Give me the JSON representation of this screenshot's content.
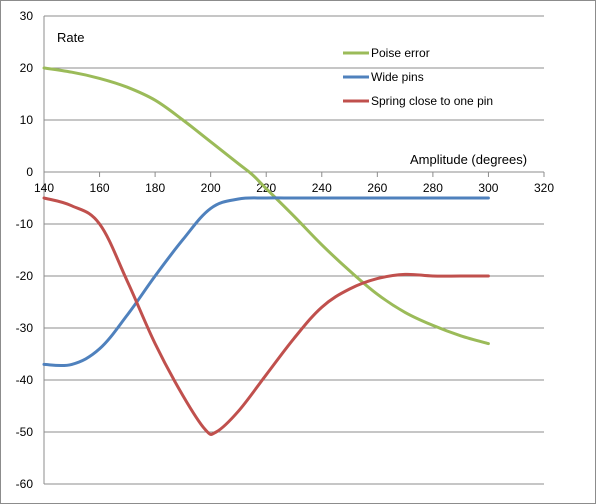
{
  "chart_data": {
    "type": "line",
    "ylabel": "Rate",
    "xlabel": "Amplitude (degrees)",
    "xlim": [
      140,
      320
    ],
    "ylim": [
      -60,
      30
    ],
    "x_ticks": [
      "140",
      "160",
      "180",
      "200",
      "220",
      "240",
      "260",
      "280",
      "300",
      "320"
    ],
    "y_ticks": [
      "30",
      "20",
      "10",
      "0",
      "-10",
      "-20",
      "-30",
      "-40",
      "-50",
      "-60"
    ],
    "grid": "horizontal",
    "legend_position": "top-right",
    "series": [
      {
        "name": "Poise error",
        "color": "#9bbb59",
        "points": [
          [
            140,
            20
          ],
          [
            150,
            19.2
          ],
          [
            160,
            18
          ],
          [
            170,
            16.3
          ],
          [
            180,
            13.8
          ],
          [
            190,
            10
          ],
          [
            200,
            5.8
          ],
          [
            210,
            1.6
          ],
          [
            215,
            -0.5
          ],
          [
            220,
            -3.2
          ],
          [
            230,
            -8.5
          ],
          [
            240,
            -14
          ],
          [
            250,
            -19
          ],
          [
            260,
            -23.5
          ],
          [
            270,
            -27
          ],
          [
            280,
            -29.5
          ],
          [
            290,
            -31.5
          ],
          [
            300,
            -33
          ]
        ]
      },
      {
        "name": "Wide pins",
        "color": "#4f81bd",
        "points": [
          [
            140,
            -37
          ],
          [
            150,
            -37
          ],
          [
            160,
            -34
          ],
          [
            170,
            -27.5
          ],
          [
            180,
            -20
          ],
          [
            190,
            -13
          ],
          [
            200,
            -7
          ],
          [
            210,
            -5.2
          ],
          [
            220,
            -5
          ],
          [
            230,
            -5
          ],
          [
            240,
            -5
          ],
          [
            260,
            -5
          ],
          [
            280,
            -5
          ],
          [
            300,
            -5
          ]
        ]
      },
      {
        "name": "Spring close to one pin",
        "color": "#c0504d",
        "points": [
          [
            140,
            -5
          ],
          [
            150,
            -6.5
          ],
          [
            160,
            -10
          ],
          [
            170,
            -21
          ],
          [
            180,
            -33
          ],
          [
            190,
            -43
          ],
          [
            198,
            -49.5
          ],
          [
            202,
            -50
          ],
          [
            210,
            -46
          ],
          [
            220,
            -39
          ],
          [
            230,
            -32
          ],
          [
            240,
            -26
          ],
          [
            250,
            -22.5
          ],
          [
            260,
            -20.5
          ],
          [
            270,
            -19.7
          ],
          [
            280,
            -20
          ],
          [
            290,
            -20
          ],
          [
            300,
            -20
          ]
        ]
      }
    ]
  }
}
